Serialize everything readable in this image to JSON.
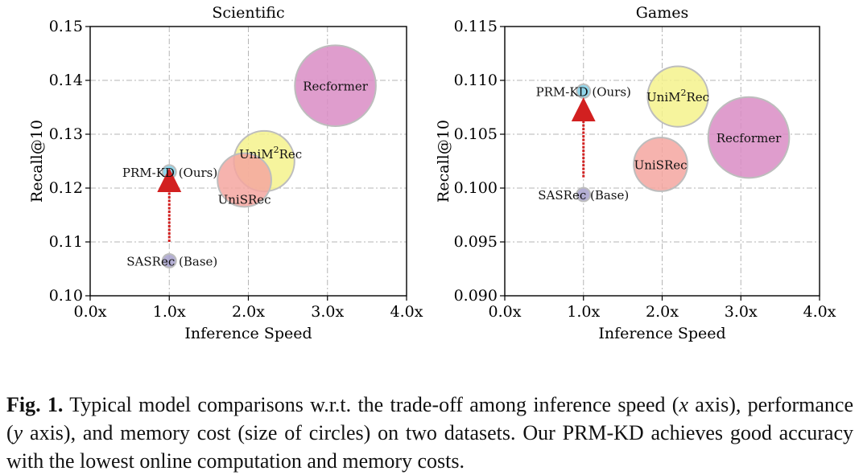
{
  "caption": {
    "label": "Fig. 1.",
    "part1": "Typical model comparisons w.r.t. the trade-off among inference speed (",
    "x_sym": "x",
    "part2": " axis), performance (",
    "y_sym": "y",
    "part3": " axis), and memory cost (size of circles) on two datasets. Our PRM-KD achieves good accuracy with the lowest online computation and memory costs."
  },
  "chart_data": [
    {
      "type": "scatter",
      "encoding": "bubble (circle size = memory cost)",
      "title": "Scientific",
      "xlabel": "Inference Speed",
      "ylabel": "Recall@10",
      "xlim": [
        0,
        4
      ],
      "ylim": [
        0.1,
        0.15
      ],
      "xticks": [
        "0.0x",
        "1.0x",
        "2.0x",
        "3.0x",
        "4.0x"
      ],
      "yticks": [
        "0.10",
        "0.11",
        "0.12",
        "0.13",
        "0.14",
        "0.15"
      ],
      "grid": true,
      "points": [
        {
          "name": "Recformer",
          "x": 3.1,
          "y": 0.139,
          "size": 5.0,
          "color": "#d98cc4",
          "label": "Recformer",
          "label_pos": "center"
        },
        {
          "name": "UniSRec",
          "x": 1.95,
          "y": 0.1215,
          "size": 2.2,
          "color": "#f5a6a0",
          "label": "UniSRec",
          "label_pos": "below"
        },
        {
          "name": "UniM2Rec",
          "x": 2.2,
          "y": 0.125,
          "size": 2.8,
          "color": "#f5f28c",
          "label": "UniM",
          "label_sup": "2",
          "label_tail": "Rec",
          "label_pos": "top"
        },
        {
          "name": "PRM-KD (Ours)",
          "x": 1.0,
          "y": 0.123,
          "size": 0.65,
          "color": "#7fcfe8",
          "label": "PRM-KD (Ours)",
          "label_pos": "left"
        },
        {
          "name": "SASRec (Base)",
          "x": 1.0,
          "y": 0.1065,
          "size": 0.65,
          "color": "#a7a1cc",
          "label": "SASRec (Base)",
          "label_pos": "left"
        }
      ],
      "arrow": {
        "from": [
          1.0,
          0.11
        ],
        "to": [
          1.0,
          0.1215
        ]
      }
    },
    {
      "type": "scatter",
      "encoding": "bubble (circle size = memory cost)",
      "title": "Games",
      "xlabel": "Inference Speed",
      "ylabel": "Recall@10",
      "xlim": [
        0,
        4
      ],
      "ylim": [
        0.09,
        0.115
      ],
      "xticks": [
        "0.0x",
        "1.0x",
        "2.0x",
        "3.0x",
        "4.0x"
      ],
      "yticks": [
        "0.090",
        "0.095",
        "0.100",
        "0.105",
        "0.110",
        "0.115"
      ],
      "grid": true,
      "points": [
        {
          "name": "Recformer",
          "x": 3.1,
          "y": 0.1047,
          "size": 5.0,
          "color": "#d98cc4",
          "label": "Recformer",
          "label_pos": "center"
        },
        {
          "name": "UniSRec",
          "x": 1.98,
          "y": 0.1022,
          "size": 2.2,
          "color": "#f5a6a0",
          "label": "UniSRec",
          "label_pos": "center"
        },
        {
          "name": "UniM2Rec",
          "x": 2.2,
          "y": 0.1085,
          "size": 2.8,
          "color": "#f5f28c",
          "label": "UniM",
          "label_sup": "2",
          "label_tail": "Rec",
          "label_pos": "center"
        },
        {
          "name": "PRM-KD (Ours)",
          "x": 1.0,
          "y": 0.109,
          "size": 0.65,
          "color": "#7fcfe8",
          "label": "PRM-KD (Ours)",
          "label_pos": "center-wide"
        },
        {
          "name": "SASRec (Base)",
          "x": 1.0,
          "y": 0.0994,
          "size": 0.65,
          "color": "#a7a1cc",
          "label": "SASRec (Base)",
          "label_pos": "center-wide"
        }
      ],
      "arrow": {
        "from": [
          1.0,
          0.101
        ],
        "to": [
          1.0,
          0.1073
        ]
      }
    }
  ]
}
